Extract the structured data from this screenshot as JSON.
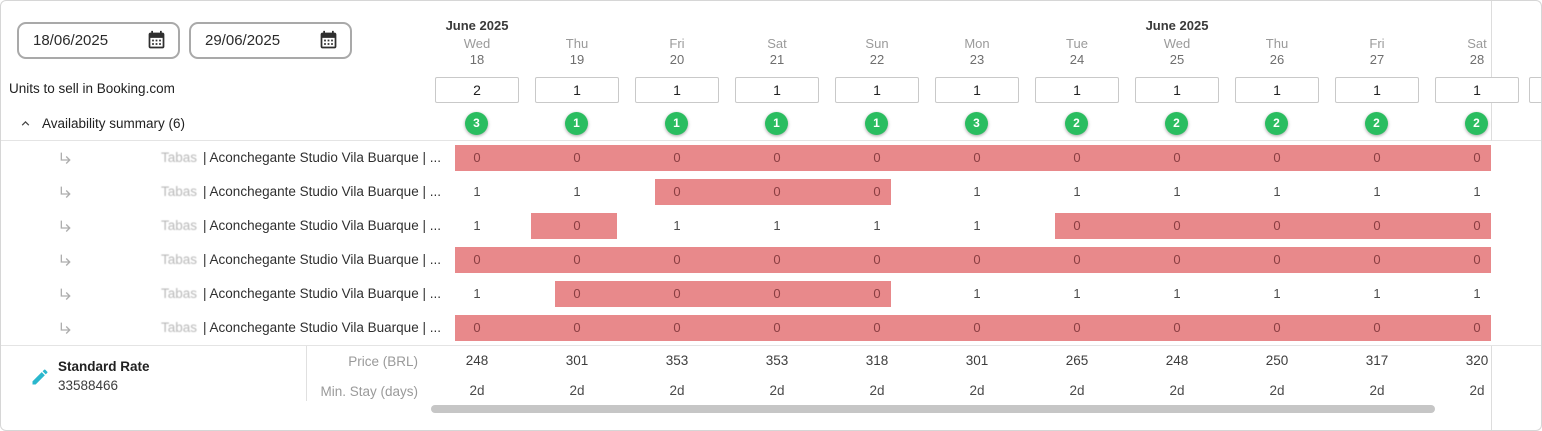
{
  "header": {
    "date_start": "18/06/2025",
    "date_end": "29/06/2025",
    "month_labels": [
      {
        "label": "June 2025",
        "column_index": 0
      },
      {
        "label": "June 2025",
        "column_index": 7
      }
    ]
  },
  "labels": {
    "units_row": "Units to sell in Booking.com",
    "summary_row": "Availability summary (6)",
    "price_row": "Price (BRL)",
    "min_stay_row": "Min. Stay (days)"
  },
  "columns": [
    {
      "dow": "Wed",
      "day": "18",
      "units": "2",
      "summary": "3",
      "price": "248",
      "min_stay": "2d"
    },
    {
      "dow": "Thu",
      "day": "19",
      "units": "1",
      "summary": "1",
      "price": "301",
      "min_stay": "2d"
    },
    {
      "dow": "Fri",
      "day": "20",
      "units": "1",
      "summary": "1",
      "price": "353",
      "min_stay": "2d"
    },
    {
      "dow": "Sat",
      "day": "21",
      "units": "1",
      "summary": "1",
      "price": "353",
      "min_stay": "2d"
    },
    {
      "dow": "Sun",
      "day": "22",
      "units": "1",
      "summary": "1",
      "price": "318",
      "min_stay": "2d"
    },
    {
      "dow": "Mon",
      "day": "23",
      "units": "1",
      "summary": "3",
      "price": "301",
      "min_stay": "2d"
    },
    {
      "dow": "Tue",
      "day": "24",
      "units": "1",
      "summary": "2",
      "price": "265",
      "min_stay": "2d"
    },
    {
      "dow": "Wed",
      "day": "25",
      "units": "1",
      "summary": "2",
      "price": "248",
      "min_stay": "2d"
    },
    {
      "dow": "Thu",
      "day": "26",
      "units": "1",
      "summary": "2",
      "price": "250",
      "min_stay": "2d"
    },
    {
      "dow": "Fri",
      "day": "27",
      "units": "1",
      "summary": "2",
      "price": "317",
      "min_stay": "2d"
    },
    {
      "dow": "Sat",
      "day": "28",
      "units": "1",
      "summary": "2",
      "price": "320",
      "min_stay": "2d"
    }
  ],
  "unit_rows": [
    {
      "brand": "Tabas",
      "name": "| Aconchegante Studio Vila Buarque | ...",
      "values": [
        "0",
        "0",
        "0",
        "0",
        "0",
        "0",
        "0",
        "0",
        "0",
        "0",
        "0"
      ]
    },
    {
      "brand": "Tabas",
      "name": "| Aconchegante Studio Vila Buarque | ...",
      "values": [
        "1",
        "1",
        "0",
        "0",
        "0",
        "1",
        "1",
        "1",
        "1",
        "1",
        "1"
      ]
    },
    {
      "brand": "Tabas",
      "name": "| Aconchegante Studio Vila Buarque | ...",
      "values": [
        "1",
        "0",
        "1",
        "1",
        "1",
        "1",
        "0",
        "0",
        "0",
        "0",
        "0"
      ]
    },
    {
      "brand": "Tabas",
      "name": "| Aconchegante Studio Vila Buarque | ...",
      "values": [
        "0",
        "0",
        "0",
        "0",
        "0",
        "0",
        "0",
        "0",
        "0",
        "0",
        "0"
      ]
    },
    {
      "brand": "Tabas",
      "name": "| Aconchegante Studio Vila Buarque | ...",
      "values": [
        "1",
        "0",
        "0",
        "0",
        "0",
        "1",
        "1",
        "1",
        "1",
        "1",
        "1"
      ]
    },
    {
      "brand": "Tabas",
      "name": "| Aconchegante Studio Vila Buarque | ...",
      "values": [
        "0",
        "0",
        "0",
        "0",
        "0",
        "0",
        "0",
        "0",
        "0",
        "0",
        "0"
      ]
    }
  ],
  "rate": {
    "name": "Standard Rate",
    "id": "33588466"
  },
  "colors": {
    "blocked": "#e8898b",
    "available_badge": "#2abd60",
    "accent_edit": "#2ab7cd"
  }
}
